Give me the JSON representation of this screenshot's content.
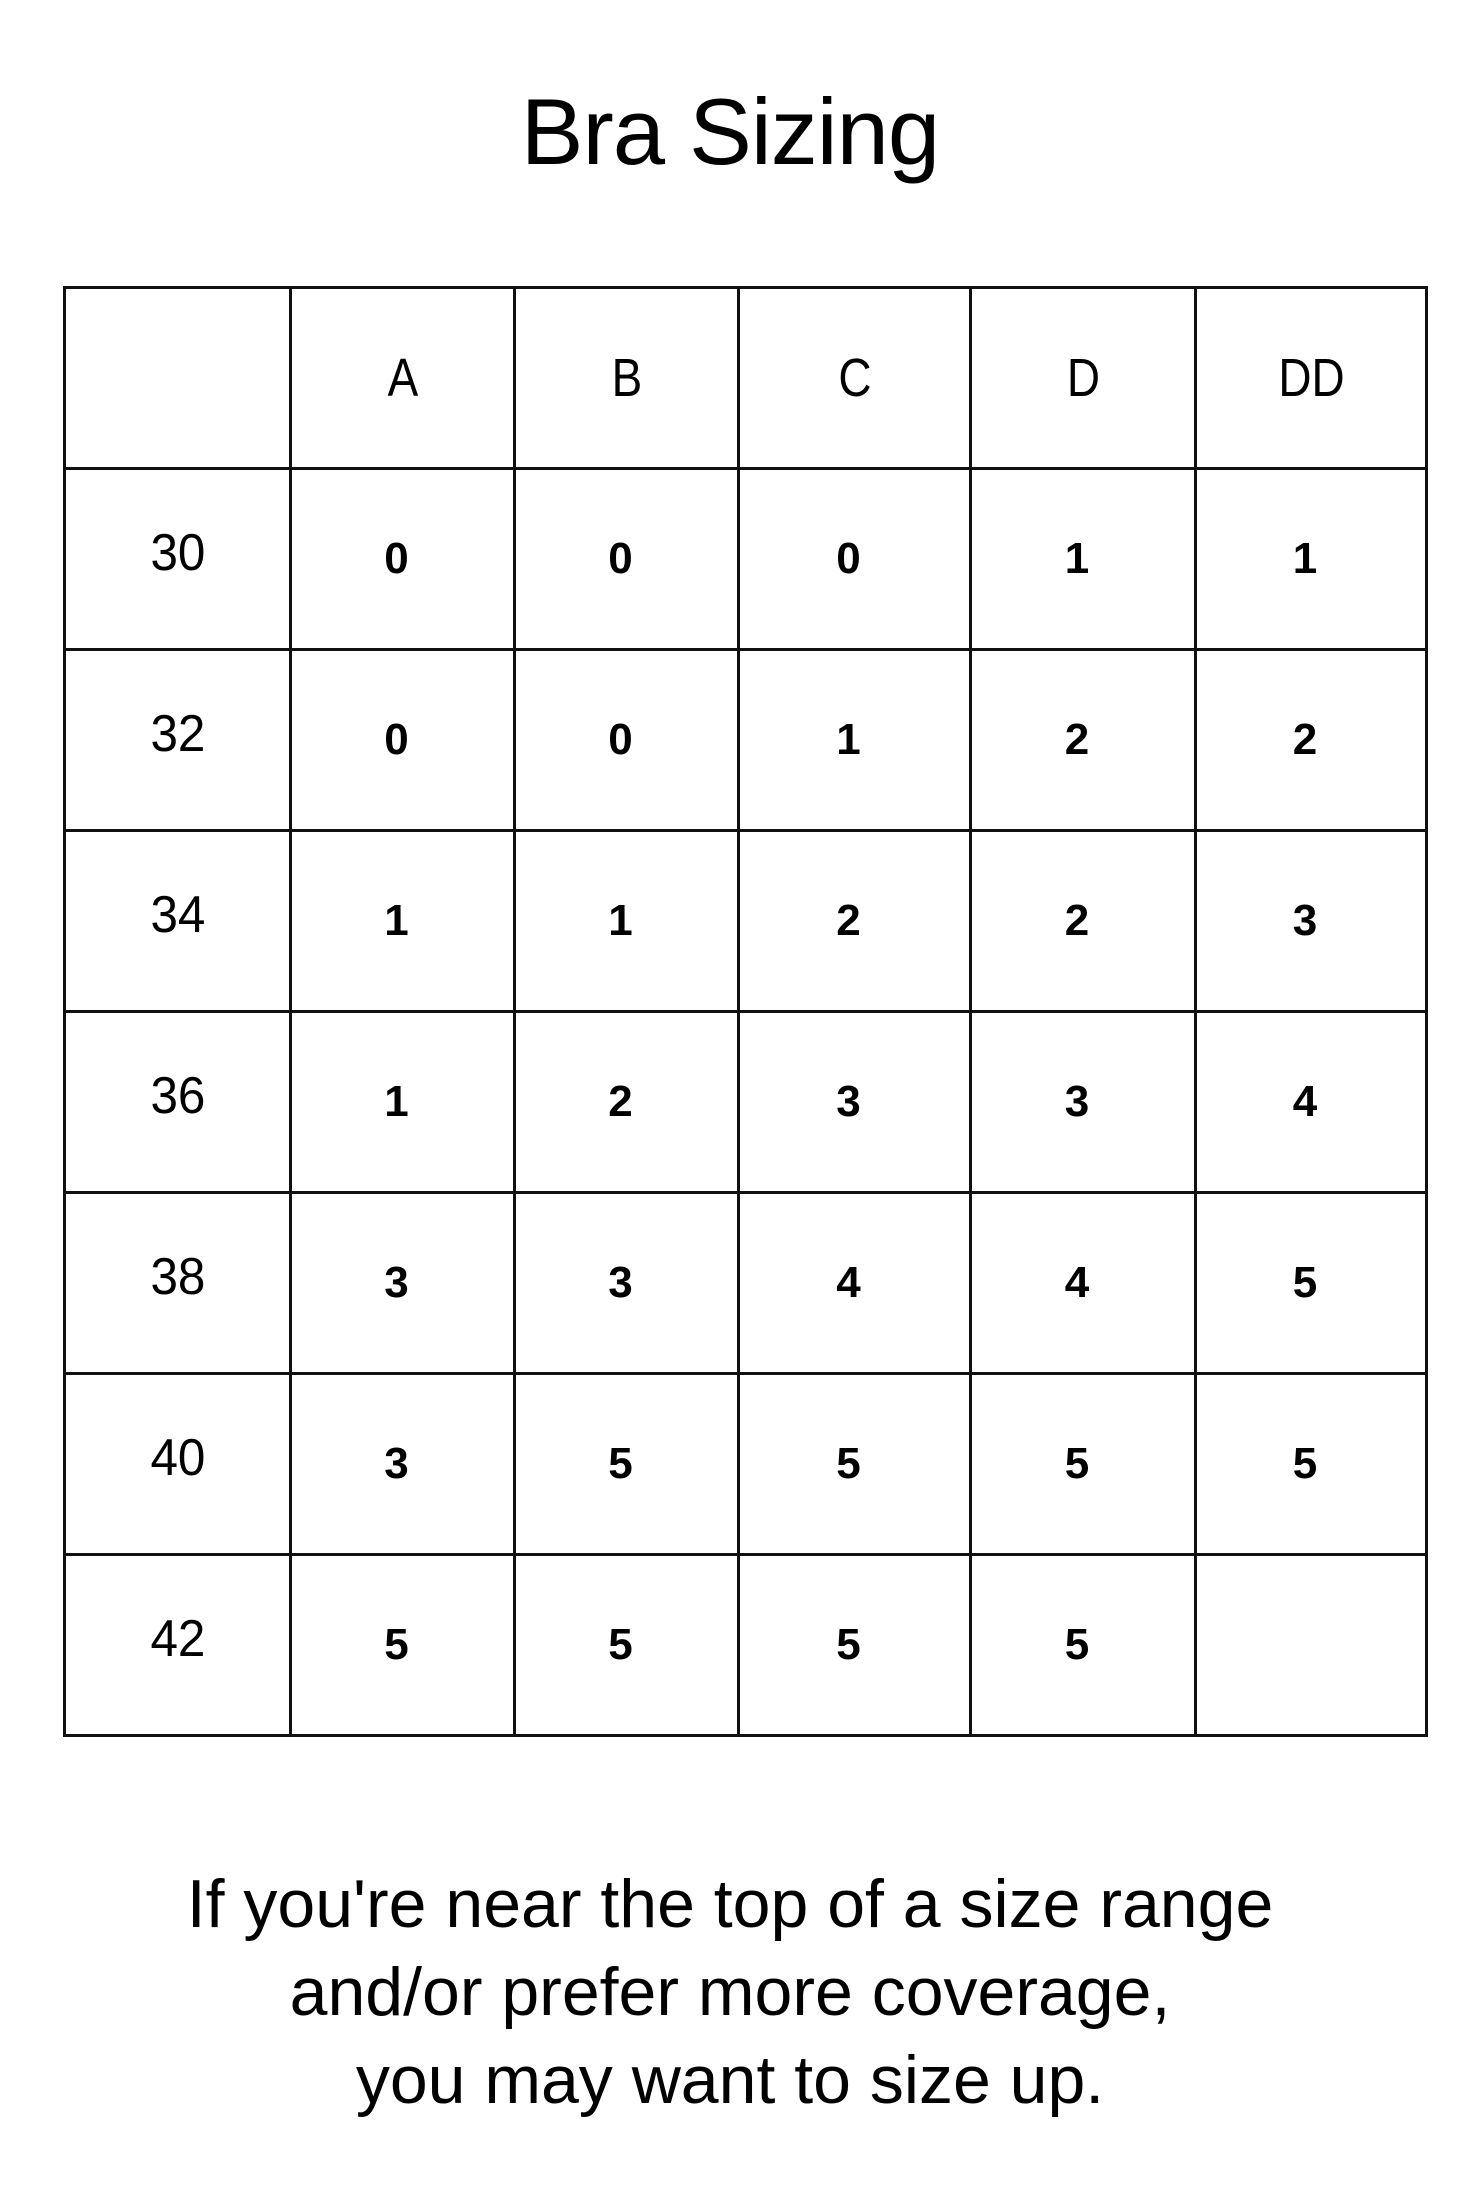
{
  "title": "Bra Sizing",
  "table": {
    "corner": "",
    "columns": [
      "A",
      "B",
      "C",
      "D",
      "DD"
    ],
    "rows": [
      {
        "band": "30",
        "values": [
          "0",
          "0",
          "0",
          "1",
          "1"
        ]
      },
      {
        "band": "32",
        "values": [
          "0",
          "0",
          "1",
          "2",
          "2"
        ]
      },
      {
        "band": "34",
        "values": [
          "1",
          "1",
          "2",
          "2",
          "3"
        ]
      },
      {
        "band": "36",
        "values": [
          "1",
          "2",
          "3",
          "3",
          "4"
        ]
      },
      {
        "band": "38",
        "values": [
          "3",
          "3",
          "4",
          "4",
          "5"
        ]
      },
      {
        "band": "40",
        "values": [
          "3",
          "5",
          "5",
          "5",
          "5"
        ]
      },
      {
        "band": "42",
        "values": [
          "5",
          "5",
          "5",
          "5",
          ""
        ]
      }
    ]
  },
  "footer": {
    "lines": [
      "If you're near the top of a size range",
      "and/or prefer more coverage,",
      "you may want to size up."
    ]
  }
}
